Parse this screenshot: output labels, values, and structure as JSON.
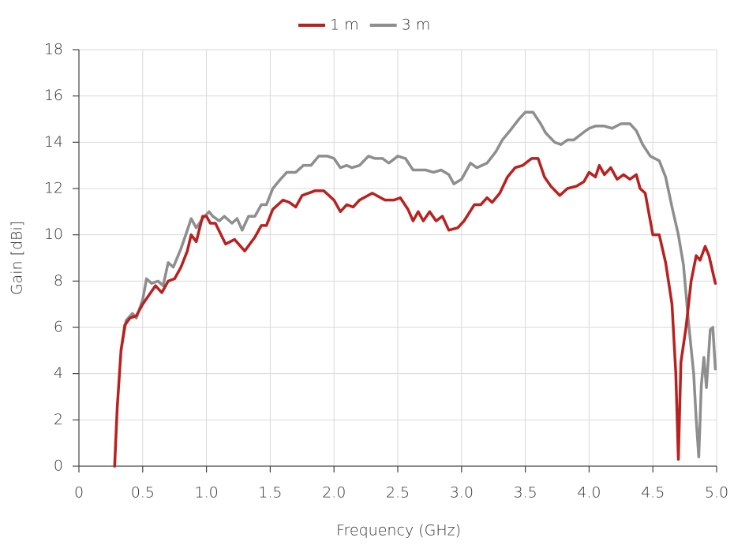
{
  "chart_data": {
    "type": "line",
    "xlabel": "Frequency (GHz)",
    "ylabel": "Gain [dBi]",
    "xlim": [
      0,
      5
    ],
    "ylim": [
      0,
      18
    ],
    "xticks": [
      0,
      0.5,
      {
        "value": 1,
        "label": "1.0"
      },
      1.5,
      {
        "value": 2,
        "label": "2.0"
      },
      2.5,
      {
        "value": 3,
        "label": "3.0"
      },
      3.5,
      {
        "value": 4,
        "label": "4.0"
      },
      4.5,
      {
        "value": 5,
        "label": "5.0"
      }
    ],
    "yticks": [
      0,
      2,
      4,
      6,
      8,
      10,
      12,
      14,
      16,
      18
    ],
    "grid": true,
    "legend": "top",
    "series": [
      {
        "name": "1 m",
        "color": "#b8211f",
        "x": [
          0.28,
          0.3,
          0.33,
          0.36,
          0.4,
          0.45,
          0.5,
          0.55,
          0.6,
          0.65,
          0.7,
          0.75,
          0.8,
          0.85,
          0.88,
          0.92,
          0.97,
          1.0,
          1.03,
          1.07,
          1.15,
          1.22,
          1.3,
          1.38,
          1.43,
          1.47,
          1.52,
          1.6,
          1.65,
          1.7,
          1.75,
          1.85,
          1.92,
          2.0,
          2.05,
          2.1,
          2.15,
          2.2,
          2.3,
          2.4,
          2.47,
          2.52,
          2.58,
          2.62,
          2.66,
          2.7,
          2.75,
          2.8,
          2.85,
          2.9,
          2.97,
          3.02,
          3.1,
          3.15,
          3.2,
          3.24,
          3.3,
          3.36,
          3.42,
          3.48,
          3.55,
          3.6,
          3.65,
          3.7,
          3.77,
          3.83,
          3.9,
          3.96,
          4.0,
          4.05,
          4.08,
          4.12,
          4.17,
          4.22,
          4.27,
          4.32,
          4.37,
          4.4,
          4.44,
          4.5,
          4.55,
          4.6,
          4.65,
          4.68,
          4.7,
          4.72,
          4.76,
          4.8,
          4.84,
          4.87,
          4.91,
          4.94,
          4.99
        ],
        "values": [
          0,
          2.5,
          5.0,
          6.1,
          6.4,
          6.5,
          7.0,
          7.4,
          7.8,
          7.5,
          8.0,
          8.1,
          8.6,
          9.3,
          10.0,
          9.7,
          10.8,
          10.8,
          10.5,
          10.5,
          9.6,
          9.8,
          9.3,
          9.9,
          10.4,
          10.4,
          11.1,
          11.5,
          11.4,
          11.2,
          11.7,
          11.9,
          11.9,
          11.5,
          11.0,
          11.3,
          11.2,
          11.5,
          11.8,
          11.5,
          11.5,
          11.6,
          11.1,
          10.6,
          11.0,
          10.6,
          11.0,
          10.6,
          10.8,
          10.2,
          10.3,
          10.6,
          11.3,
          11.3,
          11.6,
          11.4,
          11.8,
          12.5,
          12.9,
          13.0,
          13.3,
          13.3,
          12.5,
          12.1,
          11.7,
          12.0,
          12.1,
          12.3,
          12.7,
          12.5,
          13.0,
          12.6,
          12.9,
          12.4,
          12.6,
          12.4,
          12.6,
          12.0,
          11.8,
          10.0,
          10.0,
          8.8,
          7.0,
          4.0,
          0.3,
          4.5,
          6.0,
          8.0,
          9.1,
          8.9,
          9.5,
          9.1,
          7.9
        ]
      },
      {
        "name": "3 m",
        "color": "#8e8e8e",
        "x": [
          0.33,
          0.37,
          0.42,
          0.45,
          0.5,
          0.53,
          0.57,
          0.62,
          0.66,
          0.7,
          0.74,
          0.8,
          0.85,
          0.88,
          0.92,
          0.97,
          1.02,
          1.05,
          1.1,
          1.14,
          1.2,
          1.24,
          1.28,
          1.33,
          1.38,
          1.43,
          1.47,
          1.52,
          1.58,
          1.63,
          1.7,
          1.76,
          1.82,
          1.88,
          1.95,
          2.0,
          2.05,
          2.1,
          2.14,
          2.2,
          2.27,
          2.32,
          2.38,
          2.43,
          2.5,
          2.56,
          2.62,
          2.68,
          2.72,
          2.78,
          2.84,
          2.9,
          2.94,
          3.0,
          3.07,
          3.12,
          3.2,
          3.27,
          3.32,
          3.38,
          3.45,
          3.5,
          3.56,
          3.62,
          3.66,
          3.73,
          3.78,
          3.83,
          3.88,
          3.95,
          4.0,
          4.05,
          4.12,
          4.18,
          4.25,
          4.32,
          4.37,
          4.42,
          4.48,
          4.55,
          4.6,
          4.65,
          4.7,
          4.74,
          4.78,
          4.82,
          4.84,
          4.86,
          4.88,
          4.9,
          4.92,
          4.95,
          4.97,
          4.99
        ],
        "values": [
          5.0,
          6.3,
          6.6,
          6.4,
          7.2,
          8.1,
          7.9,
          8.0,
          7.8,
          8.8,
          8.6,
          9.4,
          10.2,
          10.7,
          10.3,
          10.7,
          11.0,
          10.8,
          10.6,
          10.8,
          10.5,
          10.7,
          10.2,
          10.8,
          10.8,
          11.3,
          11.3,
          12.0,
          12.4,
          12.7,
          12.7,
          13.0,
          13.0,
          13.4,
          13.4,
          13.3,
          12.9,
          13.0,
          12.9,
          13.0,
          13.4,
          13.3,
          13.3,
          13.1,
          13.4,
          13.3,
          12.8,
          12.8,
          12.8,
          12.7,
          12.8,
          12.6,
          12.2,
          12.4,
          13.1,
          12.9,
          13.1,
          13.6,
          14.1,
          14.5,
          15.0,
          15.3,
          15.3,
          14.8,
          14.4,
          14.0,
          13.9,
          14.1,
          14.1,
          14.4,
          14.6,
          14.7,
          14.7,
          14.6,
          14.8,
          14.8,
          14.5,
          13.9,
          13.4,
          13.2,
          12.5,
          11.2,
          10.0,
          8.7,
          6.2,
          4.0,
          2.0,
          0.4,
          3.5,
          4.7,
          3.4,
          5.9,
          6.0,
          4.2
        ]
      }
    ]
  }
}
